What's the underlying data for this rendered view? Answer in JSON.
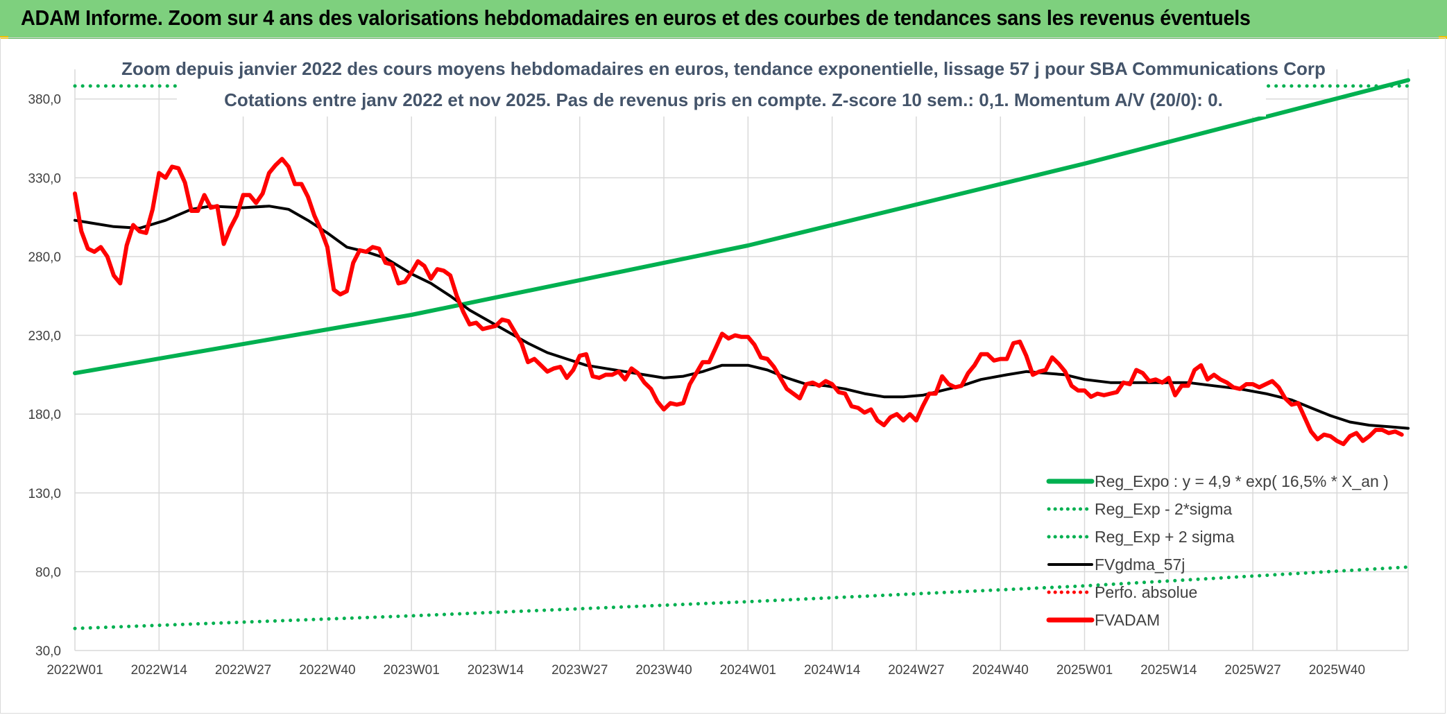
{
  "header": {
    "title": "ADAM Informe. Zoom sur 4 ans des valorisations hebdomadaires en euros et des courbes de tendances sans les revenus éventuels"
  },
  "colors": {
    "header_bg": "#7ed07e",
    "reg_expo": "#00b050",
    "fvgdma": "#000000",
    "fvadam": "#ff0000",
    "perfo": "#ff0000",
    "grid": "#d9d9d9"
  },
  "chart_data": {
    "type": "line",
    "title_lines": [
      "Zoom depuis janvier 2022 des cours moyens hebdomadaires en euros, tendance exponentielle, lissage 57 j pour SBA Communications Corp",
      "Cotations entre janv 2022 et nov 2025. Pas de revenus pris en compte. Z-score 10 sem.: 0,1. Momentum A/V (20/0): 0."
    ],
    "ylim": [
      30,
      380
    ],
    "y_ticks": [
      "30,0",
      "80,0",
      "130,0",
      "180,0",
      "230,0",
      "280,0",
      "330,0",
      "380,0"
    ],
    "y_tick_values": [
      30,
      80,
      130,
      180,
      230,
      280,
      330,
      380
    ],
    "x_ticks": [
      "2022W01",
      "2022W14",
      "2022W27",
      "2022W40",
      "2023W01",
      "2023W14",
      "2023W27",
      "2023W40",
      "2024W01",
      "2024W14",
      "2024W27",
      "2024W40",
      "2025W01",
      "2025W14",
      "2025W27",
      "2025W40"
    ],
    "x_tick_weeks": [
      0,
      13,
      26,
      39,
      52,
      65,
      78,
      91,
      104,
      117,
      130,
      143,
      156,
      169,
      182,
      195
    ],
    "x_range_weeks": [
      0,
      206
    ],
    "legend": {
      "placement": "bottom-right",
      "entries": [
        {
          "label": "Reg_Expo : y = 4,9 * exp( 16,5% *  X_an )",
          "style": "solid-thick",
          "color": "#00b050"
        },
        {
          "label": "Reg_Exp - 2*sigma",
          "style": "dotted",
          "color": "#00b050"
        },
        {
          "label": "Reg_Exp + 2 sigma",
          "style": "dotted",
          "color": "#00b050"
        },
        {
          "label": "FVgdma_57j",
          "style": "solid",
          "color": "#000000"
        },
        {
          "label": "Perfo. absolue",
          "style": "dotted",
          "color": "#ff0000"
        },
        {
          "label": "FVADAM",
          "style": "solid-thick",
          "color": "#ff0000"
        }
      ]
    },
    "series": [
      {
        "name": "Reg_Expo : y = 4,9 * exp( 16,5% *  X_an )",
        "points": [
          [
            0,
            206
          ],
          [
            52,
            243
          ],
          [
            104,
            287
          ],
          [
            156,
            339
          ],
          [
            206,
            392
          ]
        ]
      },
      {
        "name": "Reg_Exp - 2*sigma",
        "points": [
          [
            0,
            44
          ],
          [
            52,
            52
          ],
          [
            104,
            61
          ],
          [
            156,
            71
          ],
          [
            206,
            83
          ]
        ]
      },
      {
        "name": "Reg_Exp + 2 sigma",
        "points": [
          [
            0,
            401
          ],
          [
            206,
            401
          ]
        ]
      },
      {
        "name": "FVgdma_57j",
        "points": [
          [
            0,
            303
          ],
          [
            6,
            299
          ],
          [
            10,
            298
          ],
          [
            14,
            303
          ],
          [
            18,
            310
          ],
          [
            21,
            312
          ],
          [
            26,
            311
          ],
          [
            30,
            312
          ],
          [
            33,
            310
          ],
          [
            36,
            303
          ],
          [
            39,
            295
          ],
          [
            42,
            286
          ],
          [
            45,
            283
          ],
          [
            48,
            279
          ],
          [
            52,
            269
          ],
          [
            55,
            263
          ],
          [
            58,
            255
          ],
          [
            61,
            246
          ],
          [
            64,
            239
          ],
          [
            67,
            232
          ],
          [
            70,
            225
          ],
          [
            73,
            219
          ],
          [
            76,
            215
          ],
          [
            79,
            211
          ],
          [
            82,
            209
          ],
          [
            85,
            207
          ],
          [
            88,
            205
          ],
          [
            91,
            203
          ],
          [
            94,
            204
          ],
          [
            97,
            207
          ],
          [
            100,
            211
          ],
          [
            104,
            211
          ],
          [
            107,
            208
          ],
          [
            110,
            203
          ],
          [
            113,
            199
          ],
          [
            116,
            198
          ],
          [
            119,
            196
          ],
          [
            122,
            193
          ],
          [
            125,
            191
          ],
          [
            128,
            191
          ],
          [
            131,
            192
          ],
          [
            134,
            195
          ],
          [
            137,
            198
          ],
          [
            140,
            202
          ],
          [
            144,
            205
          ],
          [
            147,
            207
          ],
          [
            150,
            206
          ],
          [
            153,
            205
          ],
          [
            156,
            202
          ],
          [
            160,
            200
          ],
          [
            164,
            200
          ],
          [
            168,
            200
          ],
          [
            172,
            200
          ],
          [
            176,
            198
          ],
          [
            180,
            196
          ],
          [
            184,
            193
          ],
          [
            188,
            189
          ],
          [
            191,
            184
          ],
          [
            194,
            179
          ],
          [
            197,
            175
          ],
          [
            200,
            173
          ],
          [
            203,
            172
          ],
          [
            206,
            171
          ]
        ]
      },
      {
        "name": "FVADAM",
        "points": [
          [
            0,
            320
          ],
          [
            1,
            296
          ],
          [
            2,
            285
          ],
          [
            3,
            283
          ],
          [
            4,
            286
          ],
          [
            5,
            280
          ],
          [
            6,
            268
          ],
          [
            7,
            263
          ],
          [
            8,
            287
          ],
          [
            9,
            300
          ],
          [
            10,
            296
          ],
          [
            11,
            295
          ],
          [
            12,
            310
          ],
          [
            13,
            333
          ],
          [
            14,
            330
          ],
          [
            15,
            337
          ],
          [
            16,
            336
          ],
          [
            17,
            327
          ],
          [
            18,
            309
          ],
          [
            19,
            309
          ],
          [
            20,
            319
          ],
          [
            21,
            311
          ],
          [
            22,
            312
          ],
          [
            23,
            288
          ],
          [
            24,
            298
          ],
          [
            25,
            306
          ],
          [
            26,
            319
          ],
          [
            27,
            319
          ],
          [
            28,
            314
          ],
          [
            29,
            320
          ],
          [
            30,
            333
          ],
          [
            31,
            338
          ],
          [
            32,
            342
          ],
          [
            33,
            337
          ],
          [
            34,
            326
          ],
          [
            35,
            326
          ],
          [
            36,
            318
          ],
          [
            37,
            306
          ],
          [
            38,
            297
          ],
          [
            39,
            286
          ],
          [
            40,
            259
          ],
          [
            41,
            256
          ],
          [
            42,
            258
          ],
          [
            43,
            276
          ],
          [
            44,
            284
          ],
          [
            45,
            283
          ],
          [
            46,
            286
          ],
          [
            47,
            285
          ],
          [
            48,
            276
          ],
          [
            49,
            275
          ],
          [
            50,
            263
          ],
          [
            51,
            264
          ],
          [
            52,
            270
          ],
          [
            53,
            277
          ],
          [
            54,
            274
          ],
          [
            55,
            266
          ],
          [
            56,
            272
          ],
          [
            57,
            271
          ],
          [
            58,
            268
          ],
          [
            59,
            255
          ],
          [
            60,
            245
          ],
          [
            61,
            237
          ],
          [
            62,
            238
          ],
          [
            63,
            234
          ],
          [
            64,
            235
          ],
          [
            65,
            236
          ],
          [
            66,
            240
          ],
          [
            67,
            239
          ],
          [
            68,
            232
          ],
          [
            69,
            225
          ],
          [
            70,
            213
          ],
          [
            71,
            215
          ],
          [
            72,
            211
          ],
          [
            73,
            207
          ],
          [
            74,
            209
          ],
          [
            75,
            210
          ],
          [
            76,
            203
          ],
          [
            77,
            208
          ],
          [
            78,
            217
          ],
          [
            79,
            218
          ],
          [
            80,
            204
          ],
          [
            81,
            203
          ],
          [
            82,
            205
          ],
          [
            83,
            205
          ],
          [
            84,
            207
          ],
          [
            85,
            202
          ],
          [
            86,
            209
          ],
          [
            87,
            206
          ],
          [
            88,
            200
          ],
          [
            89,
            196
          ],
          [
            90,
            188
          ],
          [
            91,
            183
          ],
          [
            92,
            187
          ],
          [
            93,
            186
          ],
          [
            94,
            187
          ],
          [
            95,
            199
          ],
          [
            96,
            206
          ],
          [
            97,
            213
          ],
          [
            98,
            213
          ],
          [
            99,
            222
          ],
          [
            100,
            231
          ],
          [
            101,
            228
          ],
          [
            102,
            230
          ],
          [
            103,
            229
          ],
          [
            104,
            229
          ],
          [
            105,
            224
          ],
          [
            106,
            216
          ],
          [
            107,
            215
          ],
          [
            108,
            210
          ],
          [
            109,
            203
          ],
          [
            110,
            196
          ],
          [
            111,
            193
          ],
          [
            112,
            190
          ],
          [
            113,
            199
          ],
          [
            114,
            200
          ],
          [
            115,
            198
          ],
          [
            116,
            201
          ],
          [
            117,
            199
          ],
          [
            118,
            194
          ],
          [
            119,
            193
          ],
          [
            120,
            185
          ],
          [
            121,
            184
          ],
          [
            122,
            181
          ],
          [
            123,
            183
          ],
          [
            124,
            176
          ],
          [
            125,
            173
          ],
          [
            126,
            178
          ],
          [
            127,
            180
          ],
          [
            128,
            176
          ],
          [
            129,
            180
          ],
          [
            130,
            176
          ],
          [
            131,
            185
          ],
          [
            132,
            193
          ],
          [
            133,
            193
          ],
          [
            134,
            204
          ],
          [
            135,
            199
          ],
          [
            136,
            197
          ],
          [
            137,
            198
          ],
          [
            138,
            206
          ],
          [
            139,
            211
          ],
          [
            140,
            218
          ],
          [
            141,
            218
          ],
          [
            142,
            214
          ],
          [
            143,
            215
          ],
          [
            144,
            215
          ],
          [
            145,
            225
          ],
          [
            146,
            226
          ],
          [
            147,
            217
          ],
          [
            148,
            205
          ],
          [
            149,
            207
          ],
          [
            150,
            208
          ],
          [
            151,
            216
          ],
          [
            152,
            212
          ],
          [
            153,
            207
          ],
          [
            154,
            198
          ],
          [
            155,
            195
          ],
          [
            156,
            195
          ],
          [
            157,
            191
          ],
          [
            158,
            193
          ],
          [
            159,
            192
          ],
          [
            160,
            193
          ],
          [
            161,
            194
          ],
          [
            162,
            200
          ],
          [
            163,
            199
          ],
          [
            164,
            208
          ],
          [
            165,
            206
          ],
          [
            166,
            201
          ],
          [
            167,
            202
          ],
          [
            168,
            200
          ],
          [
            169,
            203
          ],
          [
            170,
            192
          ],
          [
            171,
            198
          ],
          [
            172,
            198
          ],
          [
            173,
            208
          ],
          [
            174,
            211
          ],
          [
            175,
            202
          ],
          [
            176,
            205
          ],
          [
            177,
            202
          ],
          [
            178,
            200
          ],
          [
            179,
            197
          ],
          [
            180,
            196
          ],
          [
            181,
            199
          ],
          [
            182,
            199
          ],
          [
            183,
            197
          ],
          [
            184,
            199
          ],
          [
            185,
            201
          ],
          [
            186,
            197
          ],
          [
            187,
            190
          ],
          [
            188,
            186
          ],
          [
            189,
            187
          ],
          [
            190,
            178
          ],
          [
            191,
            169
          ],
          [
            192,
            164
          ],
          [
            193,
            167
          ],
          [
            194,
            166
          ],
          [
            195,
            163
          ],
          [
            196,
            161
          ],
          [
            197,
            166
          ],
          [
            198,
            168
          ],
          [
            199,
            163
          ],
          [
            200,
            166
          ],
          [
            201,
            170
          ],
          [
            202,
            170
          ],
          [
            203,
            168
          ],
          [
            204,
            169
          ],
          [
            205,
            167
          ]
        ]
      },
      {
        "name": "Perfo. absolue",
        "points": []
      }
    ]
  }
}
